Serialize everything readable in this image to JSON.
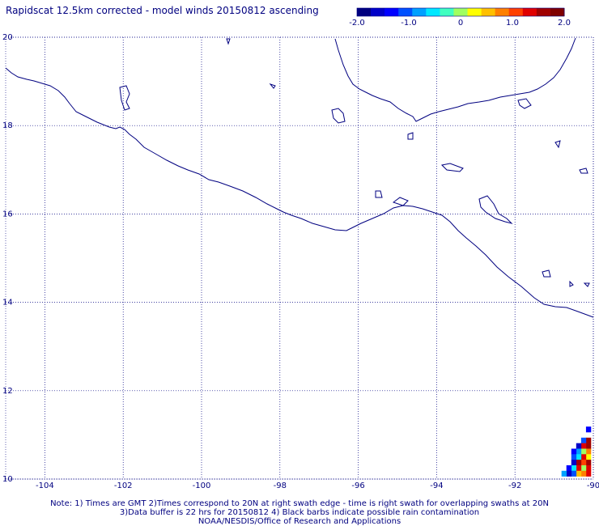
{
  "title": "Rapidscat 12.5km corrected - model winds 20150812 ascending",
  "colorbar": {
    "colors": [
      "#00007f",
      "#0000c8",
      "#0000ff",
      "#0050ff",
      "#00a0ff",
      "#00e8ff",
      "#40ffc0",
      "#a0ff60",
      "#ffff00",
      "#ffc000",
      "#ff8000",
      "#ff4000",
      "#e00000",
      "#a00000",
      "#7f0000"
    ],
    "ticks": [
      "-2.0",
      "-1.0",
      "0",
      "1.0",
      "2.0"
    ],
    "range": [
      -2.0,
      2.0
    ]
  },
  "map": {
    "lon_range": [
      -105,
      -90
    ],
    "lat_range": [
      10,
      20
    ],
    "x_tick_labels": [
      "-104",
      "-102",
      "-100",
      "-98",
      "-96",
      "-94",
      "-92",
      "-90"
    ],
    "y_tick_labels": [
      "10",
      "12",
      "14",
      "16",
      "18",
      "20"
    ],
    "grid": true,
    "coast_color": "#000080"
  },
  "swath": {
    "cell_deg": 0.125,
    "cells": [
      {
        "lon": -90.125,
        "lat": 11.125,
        "color": "#0000ff"
      },
      {
        "lon": -90.125,
        "lat": 10.875,
        "color": "#a00000"
      },
      {
        "lon": -90.25,
        "lat": 10.875,
        "color": "#0050ff"
      },
      {
        "lon": -90.125,
        "lat": 10.75,
        "color": "#a00000"
      },
      {
        "lon": -90.25,
        "lat": 10.75,
        "color": "#e00000"
      },
      {
        "lon": -90.375,
        "lat": 10.75,
        "color": "#0000c8"
      },
      {
        "lon": -90.125,
        "lat": 10.625,
        "color": "#ff8000"
      },
      {
        "lon": -90.25,
        "lat": 10.625,
        "color": "#a0ff60"
      },
      {
        "lon": -90.375,
        "lat": 10.625,
        "color": "#00a0ff"
      },
      {
        "lon": -90.5,
        "lat": 10.625,
        "color": "#0000ff"
      },
      {
        "lon": -90.125,
        "lat": 10.5,
        "color": "#ffff00"
      },
      {
        "lon": -90.25,
        "lat": 10.5,
        "color": "#e00000"
      },
      {
        "lon": -90.375,
        "lat": 10.5,
        "color": "#00e8ff"
      },
      {
        "lon": -90.5,
        "lat": 10.5,
        "color": "#0050ff"
      },
      {
        "lon": -90.125,
        "lat": 10.375,
        "color": "#a00000"
      },
      {
        "lon": -90.25,
        "lat": 10.375,
        "color": "#ff4000"
      },
      {
        "lon": -90.375,
        "lat": 10.375,
        "color": "#a00000"
      },
      {
        "lon": -90.5,
        "lat": 10.375,
        "color": "#0000c8"
      },
      {
        "lon": -90.125,
        "lat": 10.25,
        "color": "#e00000"
      },
      {
        "lon": -90.25,
        "lat": 10.25,
        "color": "#a0ff60"
      },
      {
        "lon": -90.375,
        "lat": 10.25,
        "color": "#e00000"
      },
      {
        "lon": -90.5,
        "lat": 10.25,
        "color": "#00e8ff"
      },
      {
        "lon": -90.625,
        "lat": 10.25,
        "color": "#0000ff"
      },
      {
        "lon": -90.125,
        "lat": 10.125,
        "color": "#e00000"
      },
      {
        "lon": -90.25,
        "lat": 10.125,
        "color": "#ff8000"
      },
      {
        "lon": -90.375,
        "lat": 10.125,
        "color": "#ffc000"
      },
      {
        "lon": -90.5,
        "lat": 10.125,
        "color": "#0050ff"
      },
      {
        "lon": -90.625,
        "lat": 10.125,
        "color": "#0000c8"
      },
      {
        "lon": -90.75,
        "lat": 10.125,
        "color": "#00a0ff"
      }
    ]
  },
  "notes": [
    "Note: 1) Times are GMT 2)Times correspond to 20N at right swath edge - time is right swath for overlapping swaths at 20N",
    "3)Data buffer is 22 hrs for 20150812 4) Black barbs indicate possible rain contamination",
    "NOAA/NESDIS/Office of Research and Applications"
  ]
}
